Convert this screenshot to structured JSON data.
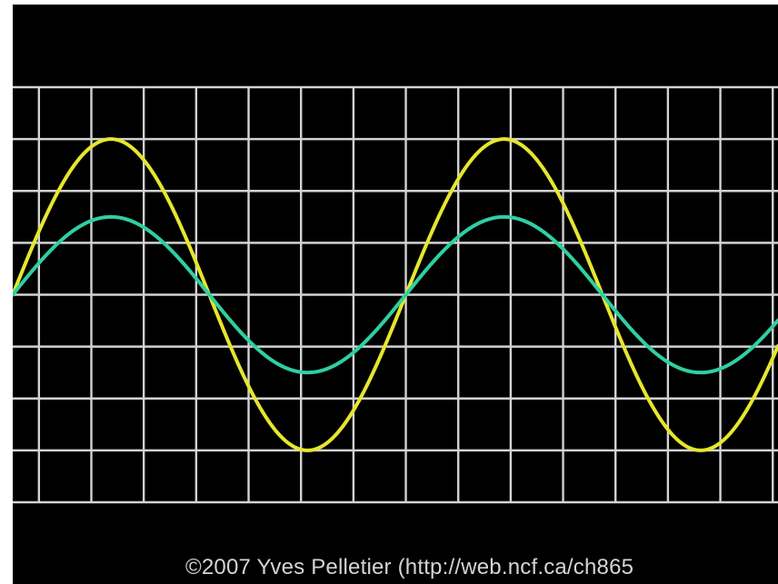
{
  "chart_data": {
    "type": "line",
    "title": "",
    "xlabel": "",
    "ylabel": "",
    "xlim": [
      0,
      14.6
    ],
    "ylim": [
      -4,
      4
    ],
    "grid": true,
    "x_gridlines": [
      0.5,
      1.5,
      2.5,
      3.5,
      4.5,
      5.5,
      6.5,
      7.5,
      8.5,
      9.5,
      10.5,
      11.5,
      12.5,
      13.5,
      14.5
    ],
    "y_gridlines": [
      -4,
      -3,
      -2,
      -1,
      0,
      1,
      2,
      3,
      4
    ],
    "series": [
      {
        "color": "#e6e62e",
        "amplitude": 3.0,
        "period": 7.5,
        "phase_x": 0.0
      },
      {
        "color": "#2fcfa3",
        "amplitude": 1.5,
        "period": 7.5,
        "phase_x": 0.0
      }
    ],
    "colors": {
      "background": "#000000",
      "grid": "#d2d2d2"
    }
  },
  "credit": "©2007 Yves Pelletier (http://web.ncf.ca/ch865"
}
